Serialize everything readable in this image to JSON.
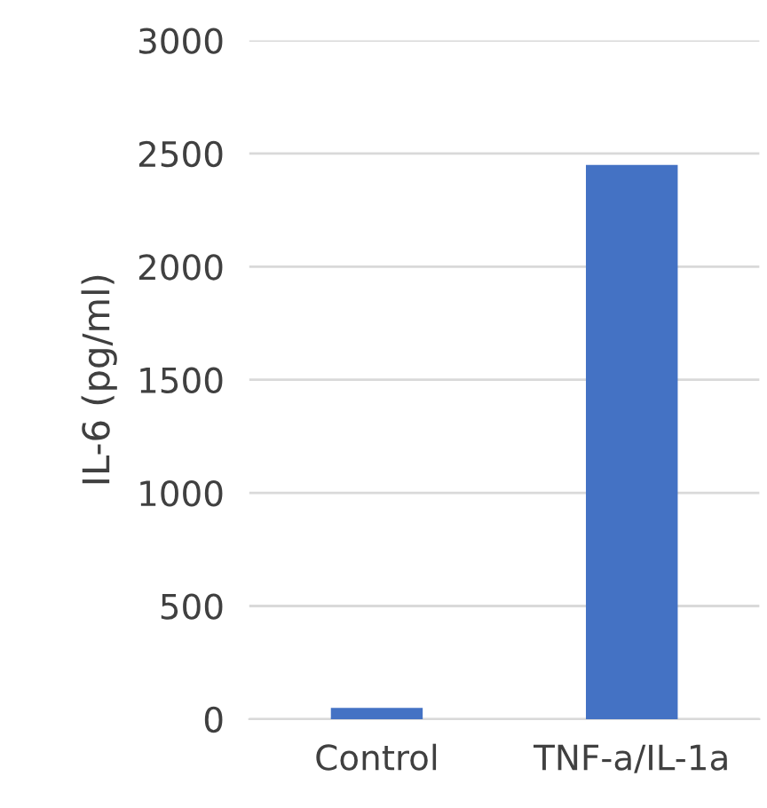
{
  "chart_data": {
    "type": "bar",
    "ylabel": "IL-6 (pg/ml)",
    "categories": [
      "Control",
      "TNF-a/IL-1a"
    ],
    "values": [
      50,
      2450
    ],
    "color": "#4472c4",
    "ylim": [
      0,
      3000
    ],
    "yticks": [
      0,
      500,
      1000,
      1500,
      2000,
      2500,
      3000
    ],
    "grid": "y"
  }
}
